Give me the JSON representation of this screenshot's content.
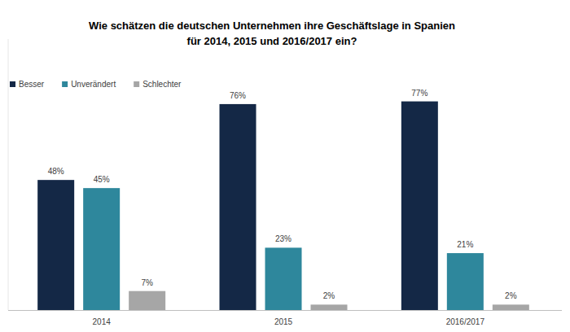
{
  "chart_data": {
    "type": "bar",
    "title": "Wie schätzen die deutschen Unternehmen ihre Geschäftslage in Spanien für 2014, 2015 und 2016/2017 ein?",
    "categories": [
      "2014",
      "2015",
      "2016/2017"
    ],
    "series": [
      {
        "name": "Besser",
        "color": "#142846",
        "values": [
          48,
          76,
          77
        ],
        "value_labels": [
          "48%",
          "76%",
          "77%"
        ]
      },
      {
        "name": "Unverändert",
        "color": "#2e879c",
        "values": [
          45,
          23,
          21
        ],
        "value_labels": [
          "45%",
          "23%",
          "21%"
        ]
      },
      {
        "name": "Schlechter",
        "color": "#a6a6a6",
        "values": [
          7,
          2,
          2
        ],
        "value_labels": [
          "7%",
          "2%",
          "2%"
        ]
      }
    ],
    "ylim": [
      0,
      100
    ],
    "grid": false,
    "legend": "top-left",
    "data_labels": true,
    "tick_labels": "x"
  }
}
